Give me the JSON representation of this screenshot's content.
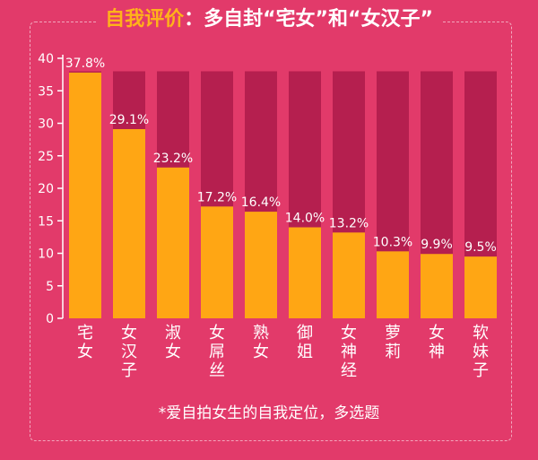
{
  "title": {
    "lead": "自我评价",
    "separator": "：",
    "rest": "多自封“宅女”和“女汉子”"
  },
  "footnote": "*爱自拍女生的自我定位，多选题",
  "colors": {
    "background": "#e23a6a",
    "bar": "#ffa614",
    "track": "#b51f4f",
    "text": "#ffffff",
    "accent": "#ffb21a"
  },
  "chart_data": {
    "type": "bar",
    "categories": [
      "宅女",
      "女汉子",
      "淑女",
      "女屌丝",
      "熟女",
      "御姐",
      "女神经",
      "萝莉",
      "女神",
      "软妹子"
    ],
    "values": [
      37.8,
      29.1,
      23.2,
      17.2,
      16.4,
      14.0,
      13.2,
      10.3,
      9.9,
      9.5
    ],
    "data_labels": [
      "37.8%",
      "29.1%",
      "23.2%",
      "17.2%",
      "16.4%",
      "14.0%",
      "13.2%",
      "10.3%",
      "9.9%",
      "9.5%"
    ],
    "yticks": [
      0,
      5,
      10,
      15,
      20,
      25,
      30,
      35,
      40
    ],
    "ylim": [
      0,
      40
    ],
    "track_max": 38,
    "grid": false,
    "legend": "none"
  }
}
